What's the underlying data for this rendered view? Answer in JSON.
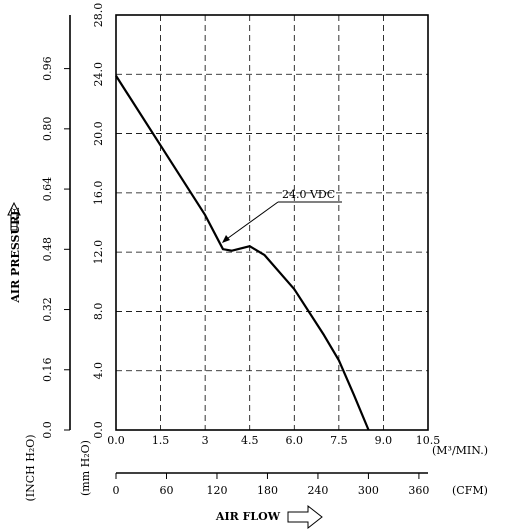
{
  "chart_data": {
    "type": "line",
    "x_label": "AIR FLOW",
    "x_unit": "(M³/MIN.)",
    "x2_unit": "(CFM)",
    "y_label": "AIR PRESSURE",
    "y_unit": "(mm H₂O)",
    "y2_unit": "(INCH H₂O)",
    "annotation": "24.0 VDC",
    "x": [
      0,
      1.5,
      3.0,
      3.6,
      3.9,
      4.5,
      5.0,
      6.0,
      7.0,
      7.5,
      8.0,
      8.5
    ],
    "values": [
      23.9,
      19.2,
      14.5,
      12.2,
      12.1,
      12.4,
      11.8,
      9.5,
      6.4,
      4.7,
      2.4,
      0
    ],
    "color": "#000000",
    "xlim": [
      0,
      10.5
    ],
    "xticks": [
      {
        "value": 0,
        "label": "0.0"
      },
      1.5,
      3.0,
      4.5,
      {
        "value": 6,
        "label": "6.0"
      },
      7.5,
      {
        "value": 9,
        "label": "9.0"
      },
      10.5
    ],
    "ylim": [
      0,
      28
    ],
    "yticks": [
      {
        "value": 0,
        "label": "0.0"
      },
      {
        "value": 4,
        "label": "4.0"
      },
      {
        "value": 8,
        "label": "8.0"
      },
      {
        "value": 12,
        "label": "12.0"
      },
      {
        "value": 16,
        "label": "16.0"
      },
      {
        "value": 20,
        "label": "20.0"
      },
      {
        "value": 24,
        "label": "24.0"
      },
      {
        "value": 28,
        "label": "28.0"
      }
    ],
    "x2lim": [
      0,
      370.8
    ],
    "x2ticks": [
      0,
      60,
      120,
      180,
      240,
      300,
      360
    ],
    "y2lim": [
      0,
      1.1024
    ],
    "y2ticks": [
      {
        "value": 0,
        "label": "0.0"
      },
      0.16,
      0.32,
      0.48,
      0.64,
      {
        "value": 0.8,
        "label": "0.80"
      },
      0.96
    ],
    "grid": true
  }
}
